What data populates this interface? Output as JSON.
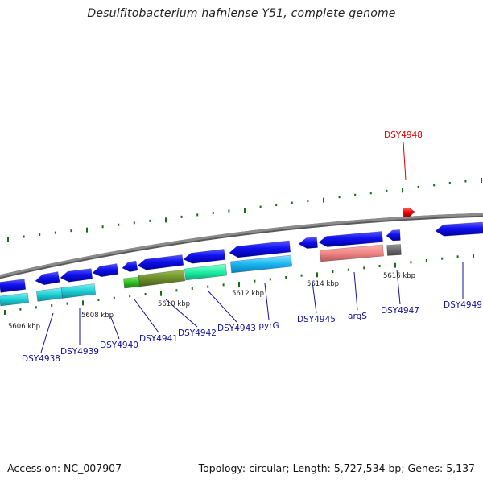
{
  "title": "Desulfitobacterium hafniense Y51, complete genome",
  "footer": {
    "accession": "Accession: NC_007907",
    "summary": "Topology: circular; Length: 5,727,534 bp; Genes: 5,137"
  },
  "colors": {
    "label": "#1010a0",
    "highlight": "#dd0000",
    "tick": "#157015",
    "backbone": "#8c8c8c"
  },
  "scale_labels": [
    "5606 kbp",
    "5608 kbp",
    "5610 kbp",
    "5612 kbp",
    "5614 kbp",
    "5616 kbp"
  ],
  "genes": [
    {
      "name": "DSY4938",
      "highlight": false
    },
    {
      "name": "DSY4939",
      "highlight": false
    },
    {
      "name": "DSY4940",
      "highlight": false
    },
    {
      "name": "DSY4941",
      "highlight": false
    },
    {
      "name": "DSY4942",
      "highlight": false
    },
    {
      "name": "DSY4943",
      "highlight": false
    },
    {
      "name": "pyrG",
      "highlight": false
    },
    {
      "name": "DSY4945",
      "highlight": false
    },
    {
      "name": "argS",
      "highlight": false
    },
    {
      "name": "DSY4947",
      "highlight": false
    },
    {
      "name": "DSY4949",
      "highlight": false
    },
    {
      "name": "DSY4948",
      "highlight": true
    }
  ]
}
